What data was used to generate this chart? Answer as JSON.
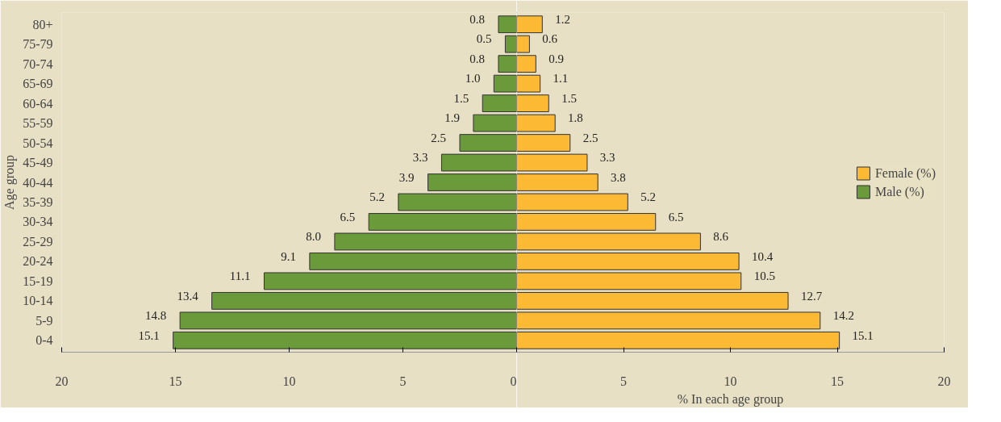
{
  "chart_data": [
    {
      "type": "bar",
      "orientation": "horizontal",
      "ylabel": "Age group",
      "categories": [
        "80+",
        "75-79",
        "70-74",
        "65-69",
        "60-64",
        "55-59",
        "50-54",
        "45-49",
        "40-44",
        "35-39",
        "30-34",
        "25-29",
        "20-24",
        "15-19",
        "10-14",
        "5-9",
        "0-4"
      ],
      "series": [
        {
          "name": "Male (%)",
          "color": "#6a9a3a",
          "values": [
            0.8,
            0.5,
            0.8,
            1.0,
            1.5,
            1.9,
            2.5,
            3.3,
            3.9,
            5.2,
            6.5,
            8.0,
            9.1,
            11.1,
            13.4,
            14.8,
            15.1
          ],
          "value_labels": [
            "0.8",
            "0.5",
            "0.8",
            "1.0",
            "1.5",
            "1.9",
            "2.5",
            "3.3",
            "3.9",
            "5.2",
            "6.5",
            "8.0",
            "9.1",
            "11.1",
            "13.4",
            "14.8",
            "15.1"
          ]
        }
      ],
      "xlim": [
        20,
        0
      ],
      "xticks": [
        20,
        15,
        10,
        5,
        0
      ],
      "grid": false
    },
    {
      "type": "bar",
      "orientation": "horizontal",
      "xlabel": "% In each age group",
      "categories": [
        null,
        null,
        null,
        null,
        null,
        null,
        null,
        null,
        null,
        null,
        null,
        null,
        null,
        null,
        null,
        null,
        null
      ],
      "series": [
        {
          "name": "Female (%)",
          "color": "#fbb934",
          "values": [
            1.2,
            0.6,
            0.9,
            1.1,
            1.5,
            1.8,
            2.5,
            3.3,
            3.8,
            5.2,
            6.5,
            8.6,
            10.4,
            10.5,
            12.7,
            14.2,
            15.1
          ],
          "value_labels": [
            "1.2",
            "0.6",
            "0.9",
            "1.1",
            "1.5",
            "1.8",
            "2.5",
            "3.3",
            "3.8",
            "5.2",
            "6.5",
            "8.6",
            "10.4",
            "10.5",
            "12.7",
            "14.2",
            "15.1"
          ]
        }
      ],
      "xlim": [
        0,
        20
      ],
      "xticks": [
        {
          "value": 0,
          "label": null
        },
        5,
        10,
        15,
        20
      ],
      "grid": false,
      "legend": "right"
    }
  ]
}
